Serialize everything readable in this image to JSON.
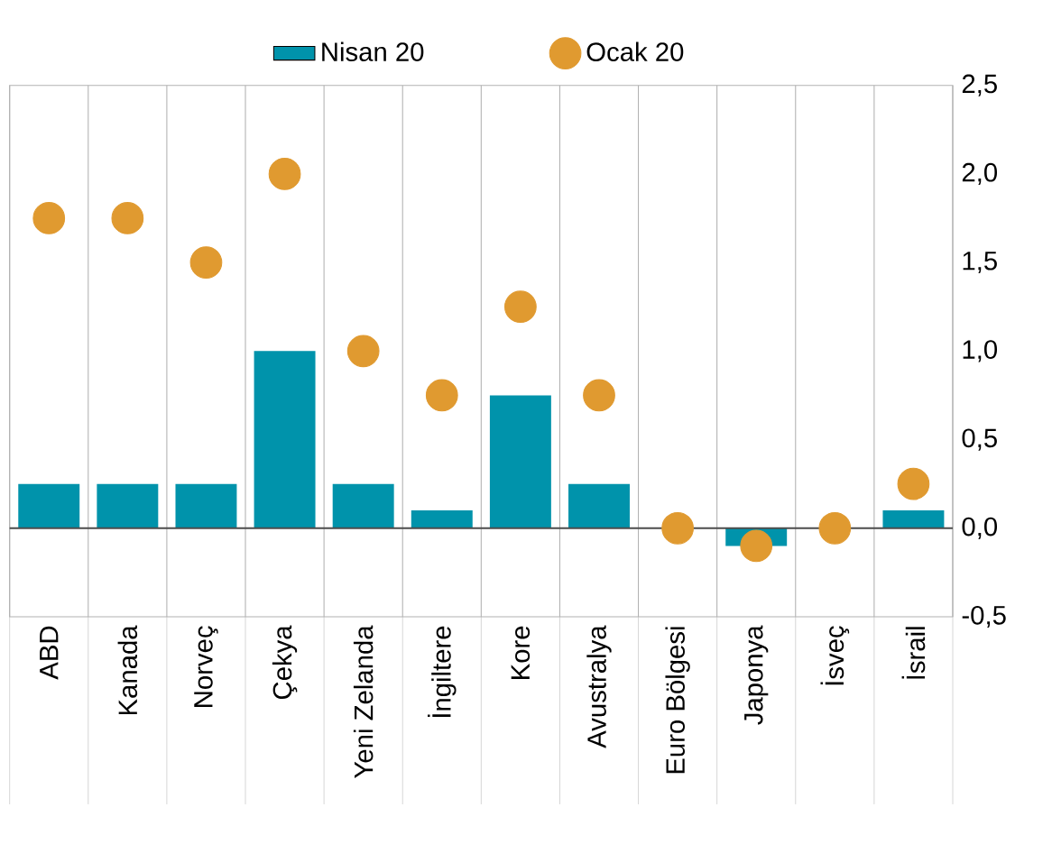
{
  "chart_data": {
    "type": "bar",
    "categories": [
      "ABD",
      "Kanada",
      "Norveç",
      "Çekya",
      "Yeni Zelanda",
      "İngiltere",
      "Kore",
      "Avustralya",
      "Euro Bölgesi",
      "Japonya",
      "İsveç",
      "İsrail"
    ],
    "series": [
      {
        "name": "Nisan 20",
        "color": "#0093ab",
        "values": [
          0.25,
          0.25,
          0.25,
          1.0,
          0.25,
          0.1,
          0.75,
          0.25,
          0,
          -0.1,
          0,
          0.1
        ]
      },
      {
        "name": "Ocak 20",
        "type": "scatter",
        "color": "#e09a30",
        "x": [
          "ABD",
          "Kanada",
          "Norveç",
          "Çekya",
          "Yeni Zelanda",
          "İngiltere",
          "Kore",
          "Avustralya",
          "Euro Bölgesi",
          "Japonya",
          "İsveç",
          "İsrail"
        ],
        "values": [
          1.75,
          1.75,
          1.5,
          2.0,
          1.0,
          0.75,
          1.25,
          0.75,
          0.0,
          -0.1,
          0.0,
          0.25
        ]
      }
    ],
    "ylim": [
      -0.5,
      2.5
    ],
    "yticks": [
      {
        "value": -0.5,
        "label": "-0,5"
      },
      {
        "value": 0,
        "label": "0,0"
      },
      {
        "value": 0.5,
        "label": "0,5"
      },
      {
        "value": 1,
        "label": "1,0"
      },
      {
        "value": 1.5,
        "label": "1,5"
      },
      {
        "value": 2,
        "label": "2,0"
      },
      {
        "value": 2.5,
        "label": "2,5"
      }
    ],
    "grid": "x",
    "legend": "top",
    "marker": "circle"
  }
}
